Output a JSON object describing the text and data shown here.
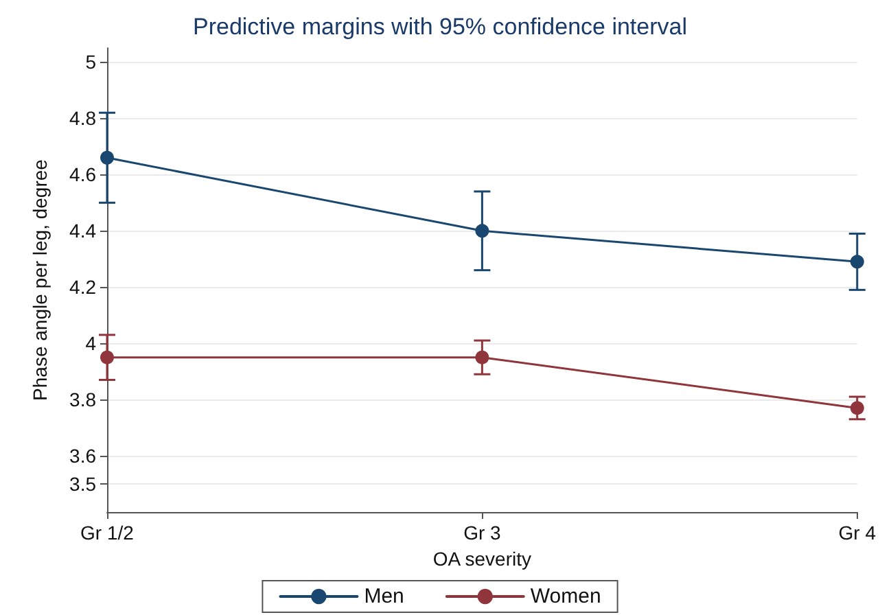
{
  "chart_data": {
    "type": "line",
    "title": "Predictive margins with 95% confidence interval",
    "xlabel": "OA severity",
    "ylabel": "Phase angle per leg, degree",
    "categories": [
      "Gr 1/2",
      "Gr 3",
      "Gr 4"
    ],
    "series": [
      {
        "name": "Men",
        "color": "#1a476f",
        "values": [
          4.66,
          4.4,
          4.29
        ],
        "errors": [
          [
            4.5,
            4.82
          ],
          [
            4.26,
            4.54
          ],
          [
            4.19,
            4.39
          ]
        ]
      },
      {
        "name": "Women",
        "color": "#90353b",
        "values": [
          3.95,
          3.95,
          3.77
        ],
        "errors": [
          [
            3.87,
            4.03
          ],
          [
            3.89,
            4.01
          ],
          [
            3.73,
            3.81
          ]
        ]
      }
    ],
    "ylim": [
      3.4,
      5.05
    ],
    "yticks": [
      3.5,
      3.6,
      3.8,
      4,
      4.2,
      4.4,
      4.6,
      4.8,
      5
    ],
    "grid": "y",
    "legend": "bottom",
    "marker": "circle",
    "line_style": "solid"
  }
}
